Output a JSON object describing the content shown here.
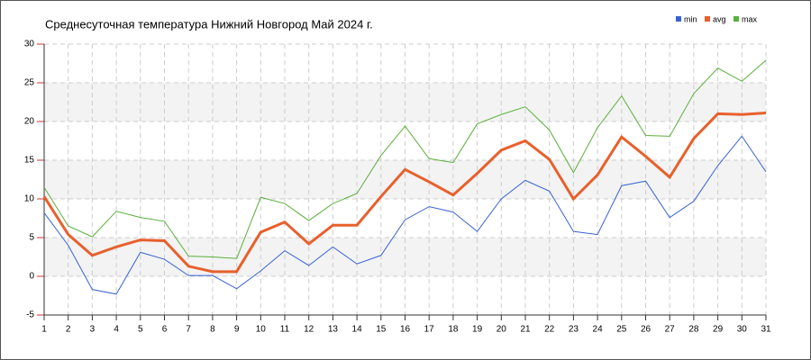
{
  "chart_data": {
    "type": "line",
    "title": "Среднесуточная температура Нижний Новгород  Май 2024 г.",
    "x": [
      1,
      2,
      3,
      4,
      5,
      6,
      7,
      8,
      9,
      10,
      11,
      12,
      13,
      14,
      15,
      16,
      17,
      18,
      19,
      20,
      21,
      22,
      23,
      24,
      25,
      26,
      27,
      28,
      29,
      30,
      31
    ],
    "xlim": [
      1,
      31
    ],
    "xticks": [
      1,
      2,
      3,
      4,
      5,
      6,
      7,
      8,
      9,
      10,
      11,
      12,
      13,
      14,
      15,
      16,
      17,
      18,
      19,
      20,
      21,
      22,
      23,
      24,
      25,
      26,
      27,
      28,
      29,
      30,
      31
    ],
    "ylim": [
      -5,
      30
    ],
    "yticks": [
      -5,
      0,
      5,
      10,
      15,
      20,
      25,
      30
    ],
    "grid": true,
    "legend": "top-right",
    "series": [
      {
        "name": "min",
        "color": "#3a62d6",
        "values": [
          8.2,
          4.0,
          -1.7,
          -2.3,
          3.1,
          2.2,
          0.1,
          0.1,
          -1.6,
          0.7,
          3.3,
          1.4,
          3.8,
          1.6,
          2.7,
          7.3,
          9.0,
          8.3,
          5.8,
          10.0,
          12.4,
          11.0,
          5.8,
          5.4,
          11.7,
          12.3,
          7.6,
          9.7,
          14.3,
          18.1,
          13.5
        ]
      },
      {
        "name": "avg",
        "color": "#e8602c",
        "values": [
          10.3,
          5.4,
          2.7,
          3.8,
          4.7,
          4.6,
          1.3,
          0.6,
          0.6,
          5.7,
          7.0,
          4.2,
          6.6,
          6.6,
          10.3,
          13.8,
          12.2,
          10.5,
          13.3,
          16.3,
          17.5,
          15.1,
          10.0,
          13.1,
          18.0,
          15.5,
          12.8,
          17.8,
          21.0,
          20.9,
          21.1
        ]
      },
      {
        "name": "max",
        "color": "#5ab03c",
        "values": [
          11.5,
          6.5,
          5.1,
          8.4,
          7.6,
          7.1,
          2.6,
          2.5,
          2.3,
          10.2,
          9.4,
          7.2,
          9.4,
          10.7,
          15.6,
          19.4,
          15.2,
          14.7,
          19.7,
          20.9,
          21.9,
          18.9,
          13.4,
          19.2,
          23.3,
          18.2,
          18.1,
          23.6,
          26.9,
          25.2,
          27.9
        ]
      }
    ]
  }
}
